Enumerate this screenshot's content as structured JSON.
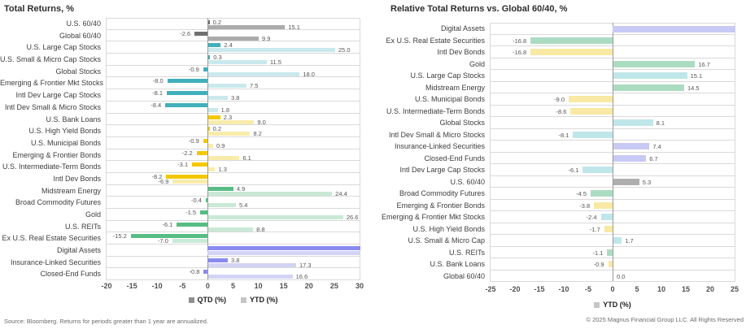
{
  "page": {
    "left_footer": "Source: Bloomberg. Returns for periods greater than 1 year are annualized.",
    "right_footer": "© 2025 Magnus Financial Group LLC. All Rights Reserved"
  },
  "chart_data": [
    {
      "type": "bar",
      "orientation": "horizontal",
      "title": "Total Returns, %",
      "xlabel": "",
      "ylabel": "",
      "xlim": [
        -20,
        30
      ],
      "x_ticks": [
        -20,
        -15,
        -10,
        -5,
        0,
        5,
        10,
        15,
        20,
        25,
        30
      ],
      "grid": "row-borders",
      "legend_position": "bottom-center",
      "series_names": [
        "QTD",
        "YTD"
      ],
      "legend": [
        {
          "label": "QTD (%)",
          "color": "#8f8f8f"
        },
        {
          "label": "YTD (%)",
          "color": "#c6c6c6"
        }
      ],
      "palette": {
        "blend": {
          "qtd": "#707070",
          "ytd": "#ababab"
        },
        "stocks": {
          "qtd": "#41b0ba",
          "ytd": "#c9e9ec"
        },
        "bonds": {
          "qtd": "#f3c801",
          "ytd": "#f9ecab"
        },
        "real": {
          "qtd": "#58bd85",
          "ytd": "#c9e9d6"
        },
        "alts": {
          "qtd": "#8a8af0",
          "ytd": "#d3d3f5"
        }
      },
      "rows": [
        {
          "label": "U.S. 60/40",
          "group": "blend",
          "qtd": 0.2,
          "ytd": 15.1
        },
        {
          "label": "Global 60/40",
          "group": "blend",
          "qtd": -2.6,
          "ytd": 9.9
        },
        {
          "label": "U.S. Large Cap Stocks",
          "group": "stocks",
          "qtd": 2.4,
          "ytd": 25.0
        },
        {
          "label": "U.S. Small & Micro Cap Stocks",
          "group": "stocks",
          "qtd": 0.3,
          "ytd": 11.5
        },
        {
          "label": "Global Stocks",
          "group": "stocks",
          "qtd": -0.9,
          "ytd": 18.0
        },
        {
          "label": "Emerging & Frontier Mkt Stocks",
          "group": "stocks",
          "qtd": -8.0,
          "ytd": 7.5
        },
        {
          "label": "Intl Dev Large Cap Stocks",
          "group": "stocks",
          "qtd": -8.1,
          "ytd": 3.8
        },
        {
          "label": "Intl Dev Small & Micro Stocks",
          "group": "stocks",
          "qtd": -8.4,
          "ytd": 1.8
        },
        {
          "label": "U.S. Bank Loans",
          "group": "bonds",
          "qtd": 2.3,
          "ytd": 9.0
        },
        {
          "label": "U.S. High Yield Bonds",
          "group": "bonds",
          "qtd": 0.2,
          "ytd": 8.2
        },
        {
          "label": "U.S. Municipal Bonds",
          "group": "bonds",
          "qtd": -0.9,
          "ytd": 0.9
        },
        {
          "label": "Emerging & Frontier Bonds",
          "group": "bonds",
          "qtd": -2.2,
          "ytd": 6.1
        },
        {
          "label": "U.S. Intermediate-Term Bonds",
          "group": "bonds",
          "qtd": -3.1,
          "ytd": 1.3
        },
        {
          "label": "Intl Dev Bonds",
          "group": "bonds",
          "qtd": -8.2,
          "ytd": -6.9
        },
        {
          "label": "Midstream Energy",
          "group": "real",
          "qtd": 4.9,
          "ytd": 24.4
        },
        {
          "label": "Broad Commodity Futures",
          "group": "real",
          "qtd": -0.4,
          "ytd": 5.4
        },
        {
          "label": "Gold",
          "group": "real",
          "qtd": -1.5,
          "ytd": 26.6
        },
        {
          "label": "U.S. REITs",
          "group": "real",
          "qtd": -6.1,
          "ytd": 8.8
        },
        {
          "label": "Ex U.S. Real Estate Securities",
          "group": "real",
          "qtd": -15.2,
          "ytd": -7.0
        },
        {
          "label": "Digital Assets",
          "group": "alts",
          "qtd": null,
          "ytd": null,
          "clipped": true
        },
        {
          "label": "Insurance-Linked Securities",
          "group": "alts",
          "qtd": 3.8,
          "ytd": 17.3
        },
        {
          "label": "Closed-End Funds",
          "group": "alts",
          "qtd": -0.8,
          "ytd": 16.6
        }
      ]
    },
    {
      "type": "bar",
      "orientation": "horizontal",
      "title": "Relative Total Returns vs. Global 60/40, %",
      "xlabel": "",
      "ylabel": "",
      "xlim": [
        -25,
        25
      ],
      "x_ticks": [
        -25,
        -20,
        -15,
        -10,
        -5,
        0,
        5,
        10,
        15,
        20,
        25
      ],
      "grid": "row-borders",
      "legend_position": "bottom-center",
      "series_names": [
        "YTD"
      ],
      "legend": [
        {
          "label": "YTD (%)",
          "color": "#c6c6c6"
        }
      ],
      "palette": {
        "blend": {
          "ytd": "#aeaeae"
        },
        "stocks": {
          "ytd": "#bfe6e9"
        },
        "bonds": {
          "ytd": "#f8e9a4"
        },
        "real": {
          "ytd": "#abdcc1"
        },
        "alts": {
          "ytd": "#c9c9f5"
        }
      },
      "rows": [
        {
          "label": "Digital Assets",
          "group": "alts",
          "ytd": null,
          "clipped": true
        },
        {
          "label": "Ex U.S. Real Estate Securities",
          "group": "real",
          "ytd": -16.8
        },
        {
          "label": "Intl Dev Bonds",
          "group": "bonds",
          "ytd": -16.8
        },
        {
          "label": "Gold",
          "group": "real",
          "ytd": 16.7
        },
        {
          "label": "U.S. Large Cap Stocks",
          "group": "stocks",
          "ytd": 15.1
        },
        {
          "label": "Midstream Energy",
          "group": "real",
          "ytd": 14.5
        },
        {
          "label": "U.S. Municipal Bonds",
          "group": "bonds",
          "ytd": -9.0
        },
        {
          "label": "U.S. Intermediate-Term Bonds",
          "group": "bonds",
          "ytd": -8.6
        },
        {
          "label": "Global Stocks",
          "group": "stocks",
          "ytd": 8.1
        },
        {
          "label": "Intl Dev Small & Micro Stocks",
          "group": "stocks",
          "ytd": -8.1
        },
        {
          "label": "Insurance-Linked Securities",
          "group": "alts",
          "ytd": 7.4
        },
        {
          "label": "Closed-End Funds",
          "group": "alts",
          "ytd": 6.7
        },
        {
          "label": "Intl Dev Large Cap Stocks",
          "group": "stocks",
          "ytd": -6.1
        },
        {
          "label": "U.S. 60/40",
          "group": "blend",
          "ytd": 5.3
        },
        {
          "label": "Broad Commodity Futures",
          "group": "real",
          "ytd": -4.5
        },
        {
          "label": "Emerging & Frontier Bonds",
          "group": "bonds",
          "ytd": -3.8
        },
        {
          "label": "Emerging & Frontier Mkt Stocks",
          "group": "stocks",
          "ytd": -2.4
        },
        {
          "label": "U.S. High Yield Bonds",
          "group": "bonds",
          "ytd": -1.7
        },
        {
          "label": "U.S. Small & Micro Cap",
          "group": "stocks",
          "ytd": 1.7
        },
        {
          "label": "U.S. REITs",
          "group": "real",
          "ytd": -1.1
        },
        {
          "label": "U.S. Bank Loans",
          "group": "bonds",
          "ytd": -0.9
        },
        {
          "label": "Global 60/40",
          "group": "blend",
          "ytd": 0.0
        }
      ]
    }
  ]
}
